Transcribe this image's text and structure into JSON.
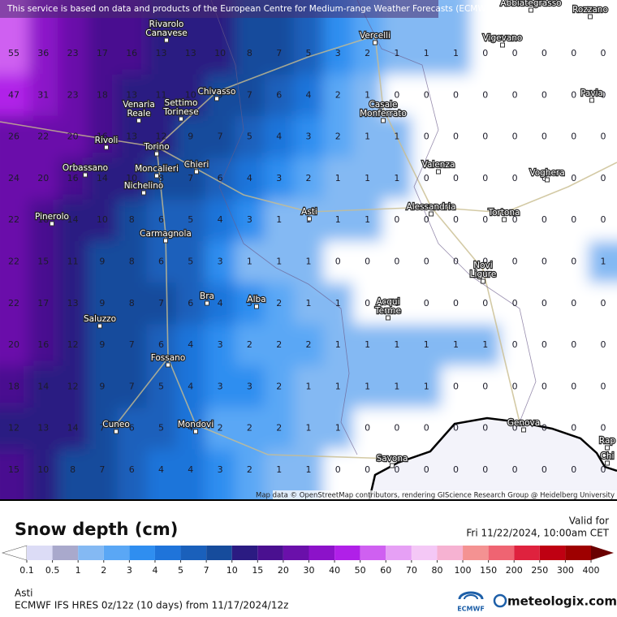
{
  "header": {
    "notice": "This service is based on data and products of the European Centre for Medium-range Weather Forecasts (ECMWF)"
  },
  "map": {
    "grid_values": [
      [
        55,
        36,
        23,
        17,
        16,
        13,
        13,
        10,
        8,
        7,
        5,
        3,
        2,
        1,
        1,
        1,
        0,
        0,
        0,
        0,
        0
      ],
      [
        47,
        31,
        23,
        18,
        13,
        11,
        10,
        9,
        7,
        6,
        4,
        2,
        1,
        0,
        0,
        0,
        0,
        0,
        0,
        0,
        0
      ],
      [
        26,
        22,
        20,
        16,
        13,
        12,
        9,
        7,
        5,
        4,
        3,
        2,
        1,
        1,
        0,
        0,
        0,
        0,
        0,
        0,
        0
      ],
      [
        24,
        20,
        16,
        14,
        10,
        8,
        7,
        6,
        4,
        3,
        2,
        1,
        1,
        1,
        0,
        0,
        0,
        0,
        0,
        0,
        0
      ],
      [
        22,
        18,
        14,
        10,
        8,
        6,
        5,
        4,
        3,
        1,
        1,
        1,
        1,
        0,
        0,
        0,
        0,
        0,
        0,
        0,
        0
      ],
      [
        22,
        15,
        11,
        9,
        8,
        6,
        5,
        3,
        1,
        1,
        1,
        0,
        0,
        0,
        0,
        0,
        0,
        0,
        0,
        0,
        1
      ],
      [
        22,
        17,
        13,
        9,
        8,
        7,
        6,
        4,
        3,
        2,
        1,
        1,
        0,
        0,
        0,
        0,
        0,
        0,
        0,
        0,
        0
      ],
      [
        20,
        16,
        12,
        9,
        7,
        6,
        4,
        3,
        2,
        2,
        2,
        1,
        1,
        1,
        1,
        1,
        1,
        0,
        0,
        0,
        0
      ],
      [
        18,
        14,
        12,
        9,
        7,
        5,
        4,
        3,
        3,
        2,
        1,
        1,
        1,
        1,
        1,
        0,
        0,
        0,
        0,
        0,
        0
      ],
      [
        12,
        13,
        14,
        7,
        6,
        5,
        4,
        2,
        2,
        2,
        1,
        1,
        0,
        0,
        0,
        0,
        0,
        0,
        0,
        0,
        0
      ],
      [
        15,
        10,
        8,
        7,
        6,
        4,
        4,
        3,
        2,
        1,
        1,
        0,
        0,
        0,
        0,
        0,
        0,
        0,
        0,
        0,
        0
      ]
    ],
    "cities": [
      "Abbiategrasso",
      "Rozzano",
      "Rivarolo Canavese",
      "Vercelli",
      "Vigevano",
      "Chivasso",
      "Venaria Reale",
      "Settimo Torinese",
      "Casale Monferrato",
      "Pavia",
      "Rivoli",
      "Torino",
      "Orbassano",
      "Moncalieri",
      "Chieri",
      "Nichelino",
      "Valenza",
      "Voghera",
      "Asti",
      "Alessandria",
      "Tortona",
      "Pinerolo",
      "Carmagnola",
      "Novi Ligure",
      "Alba",
      "Bra",
      "Acqui Terme",
      "Saluzzo",
      "Fossano",
      "Cuneo",
      "Mondovi",
      "Genova",
      "Savona",
      "Rap",
      "Chi"
    ],
    "attribution": "Map data © OpenStreetMap contributors, rendering GIScience Research Group @ Heidelberg University"
  },
  "legend": {
    "title": "Snow depth (cm)",
    "ticks": [
      0.1,
      0.5,
      1,
      2,
      3,
      4,
      5,
      7,
      10,
      15,
      20,
      30,
      40,
      50,
      60,
      70,
      80,
      100,
      150,
      200,
      250,
      300,
      400
    ],
    "colors": [
      "#dcdcf6",
      "#a9a9cc",
      "#84b9f3",
      "#5aa7f5",
      "#2f8ef0",
      "#1f74da",
      "#1a60bb",
      "#164c9c",
      "#2b1b82",
      "#4a1090",
      "#6a10aa",
      "#8c12c9",
      "#b020e8",
      "#cf60f1",
      "#e6a0f5",
      "#f4c8f6",
      "#f6b2d2",
      "#f49292",
      "#ef6472",
      "#df223e",
      "#bf0012",
      "#9e0000"
    ],
    "under_color": "#ffffff",
    "over_color": "#6a0000"
  },
  "footer": {
    "valid_label": "Valid for",
    "valid_time": "Fri 11/22/2024, 10:00am CET",
    "location": "Asti",
    "model": "ECMWF IFS HRES 0z/12z (10 days) from 11/17/2024/12z",
    "logo_ecmwf": "ECMWF",
    "brand": "meteologix.com"
  }
}
